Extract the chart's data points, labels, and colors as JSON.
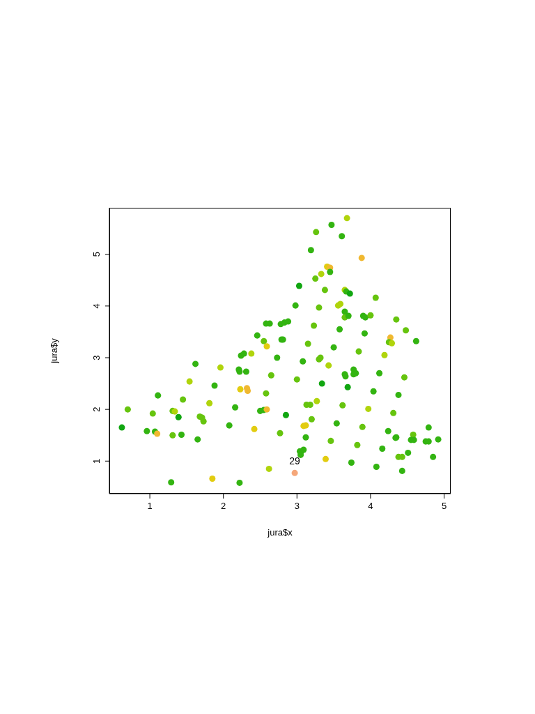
{
  "chart_data": {
    "type": "scatter",
    "xlabel": "jura$x",
    "ylabel": "jura$y",
    "marker": "circle",
    "grid": false,
    "legend": false,
    "xlim": [
      0.45,
      5.09
    ],
    "ylim": [
      0.37,
      5.9
    ],
    "xticks": [
      1,
      2,
      3,
      4,
      5
    ],
    "yticks": [
      1,
      2,
      3,
      4,
      5
    ],
    "annotations": [
      {
        "text": "29",
        "x": 2.97,
        "y": 0.77
      }
    ],
    "x": [
      2.24,
      2.28,
      2.38,
      2.73,
      1.62,
      1.96,
      2.21,
      2.22,
      2.31,
      2.65,
      1.54,
      1.88,
      2.23,
      2.32,
      2.33,
      2.58,
      1.11,
      1.45,
      1.81,
      2.16,
      0.7,
      1.04,
      1.31,
      1.34,
      1.39,
      1.68,
      1.71,
      1.73,
      2.5,
      2.55,
      2.59,
      2.08,
      0.62,
      0.96,
      1.07,
      1.1,
      1.31,
      1.43,
      1.65,
      2.42,
      2.77,
      2.62,
      1.85,
      1.29,
      2.22,
      2.58,
      2.63,
      2.78,
      2.46,
      2.55,
      2.59,
      2.79,
      3.68,
      3.47,
      3.26,
      3.61,
      3.19,
      3.88,
      3.41,
      3.45,
      3.45,
      3.33,
      3.25,
      3.03,
      3.38,
      3.65,
      3.67,
      3.72,
      4.07,
      2.98,
      3.3,
      3.56,
      3.59,
      3.65,
      3.65,
      3.7,
      3.9,
      3.93,
      4.0,
      4.35,
      2.83,
      2.88,
      3.23,
      3.58,
      4.48,
      2.81,
      3.15,
      3.92,
      4.27,
      4.25,
      4.29,
      4.62,
      3.5,
      3.84,
      4.19,
      3.08,
      3.3,
      3.32,
      3.43,
      3.65,
      3.66,
      3.77,
      3.8,
      3.77,
      4.12,
      4.46,
      3.0,
      3.34,
      3.69,
      4.04,
      4.38,
      3.13,
      3.18,
      3.27,
      3.62,
      3.97,
      4.31,
      2.85,
      3.2,
      3.09,
      3.12,
      3.54,
      3.89,
      4.24,
      4.79,
      4.58,
      4.34,
      4.35,
      4.55,
      4.59,
      4.75,
      4.79,
      4.92,
      3.12,
      3.46,
      3.82,
      4.16,
      4.51,
      3.04,
      3.06,
      3.09,
      3.05,
      4.85,
      4.38,
      4.43,
      3.39,
      3.74,
      4.08,
      4.43,
      2.97
    ],
    "values": [
      3.04,
      3.08,
      3.08,
      3.0,
      2.88,
      2.81,
      2.77,
      2.73,
      2.73,
      2.66,
      2.54,
      2.46,
      2.39,
      2.41,
      2.36,
      2.31,
      2.27,
      2.19,
      2.12,
      2.04,
      2.0,
      1.92,
      1.97,
      1.96,
      1.85,
      1.86,
      1.84,
      1.77,
      1.97,
      1.99,
      2.0,
      1.69,
      1.65,
      1.58,
      1.57,
      1.53,
      1.5,
      1.51,
      1.42,
      1.62,
      1.54,
      0.85,
      0.66,
      0.59,
      0.58,
      3.66,
      3.66,
      3.65,
      3.43,
      3.32,
      3.22,
      3.35,
      5.7,
      5.57,
      5.43,
      5.35,
      5.08,
      4.93,
      4.76,
      4.74,
      4.66,
      4.62,
      4.53,
      4.39,
      4.31,
      4.31,
      4.28,
      4.24,
      4.16,
      4.01,
      3.97,
      4.01,
      4.04,
      3.89,
      3.78,
      3.81,
      3.81,
      3.78,
      3.82,
      3.74,
      3.68,
      3.7,
      3.62,
      3.55,
      3.53,
      3.35,
      3.27,
      3.47,
      3.39,
      3.3,
      3.28,
      3.32,
      3.2,
      3.12,
      3.05,
      2.93,
      2.97,
      3.0,
      2.85,
      2.68,
      2.64,
      2.77,
      2.7,
      2.68,
      2.7,
      2.62,
      2.58,
      2.5,
      2.43,
      2.35,
      2.28,
      2.09,
      2.09,
      2.16,
      2.08,
      2.01,
      1.93,
      1.89,
      1.81,
      1.68,
      1.69,
      1.73,
      1.66,
      1.58,
      1.65,
      1.51,
      1.45,
      1.46,
      1.41,
      1.41,
      1.38,
      1.38,
      1.42,
      1.46,
      1.39,
      1.31,
      1.24,
      1.16,
      1.19,
      1.19,
      1.22,
      1.12,
      1.08,
      1.08,
      1.08,
      1.04,
      0.97,
      0.89,
      0.81,
      0.77
    ],
    "colors": [
      "#33b411",
      "#33b411",
      "#b0d40c",
      "#33b411",
      "#33b411",
      "#b0d40c",
      "#33b411",
      "#33b411",
      "#33b411",
      "#66c40e",
      "#b0d40c",
      "#33b411",
      "#e2cc10",
      "#f0b830",
      "#f0b830",
      "#66c40e",
      "#33b411",
      "#66c40e",
      "#b0d40c",
      "#33b411",
      "#66c40e",
      "#66c40e",
      "#66c40e",
      "#b0d40c",
      "#11a611",
      "#66c40e",
      "#66c40e",
      "#66c40e",
      "#33b411",
      "#33b411",
      "#f0b830",
      "#33b411",
      "#11a611",
      "#33b411",
      "#33b411",
      "#f0b830",
      "#66c40e",
      "#33b411",
      "#33b411",
      "#e2cc10",
      "#66c40e",
      "#b0d40c",
      "#e2cc10",
      "#33b411",
      "#33b411",
      "#33b411",
      "#33b411",
      "#33b411",
      "#33b411",
      "#66c40e",
      "#e2cc10",
      "#33b411",
      "#b0d40c",
      "#33b411",
      "#66c40e",
      "#33b411",
      "#33b411",
      "#f0b830",
      "#e2cc10",
      "#f0b830",
      "#33b411",
      "#b0d40c",
      "#66c40e",
      "#11a611",
      "#66c40e",
      "#b0d40c",
      "#33b411",
      "#11a611",
      "#66c40e",
      "#33b411",
      "#66c40e",
      "#b0d40c",
      "#b0d40c",
      "#33b411",
      "#66c40e",
      "#33b411",
      "#33b411",
      "#33b411",
      "#66c40e",
      "#66c40e",
      "#33b411",
      "#33b411",
      "#66c40e",
      "#33b411",
      "#66c40e",
      "#33b411",
      "#66c40e",
      "#33b411",
      "#f0b830",
      "#66c40e",
      "#b0d40c",
      "#33b411",
      "#33b411",
      "#66c40e",
      "#b0d40c",
      "#33b411",
      "#66c40e",
      "#66c40e",
      "#b0d40c",
      "#33b411",
      "#33b411",
      "#33b411",
      "#33b411",
      "#33b411",
      "#33b411",
      "#66c40e",
      "#66c40e",
      "#11a611",
      "#11a611",
      "#33b411",
      "#33b411",
      "#66c40e",
      "#66c40e",
      "#b0d40c",
      "#66c40e",
      "#b0d40c",
      "#66c40e",
      "#11a611",
      "#66c40e",
      "#e2cc10",
      "#e2cc10",
      "#33b411",
      "#66c40e",
      "#33b411",
      "#33b411",
      "#66c40e",
      "#33b411",
      "#33b411",
      "#33b411",
      "#33b411",
      "#33b411",
      "#33b411",
      "#33b411",
      "#33b411",
      "#66c40e",
      "#66c40e",
      "#33b411",
      "#33b411",
      "#33b411",
      "#33b411",
      "#33b411",
      "#33b411",
      "#33b411",
      "#66c40e",
      "#66c40e",
      "#e2cc10",
      "#33b411",
      "#33b411",
      "#33b411",
      "#f5a77a"
    ]
  }
}
